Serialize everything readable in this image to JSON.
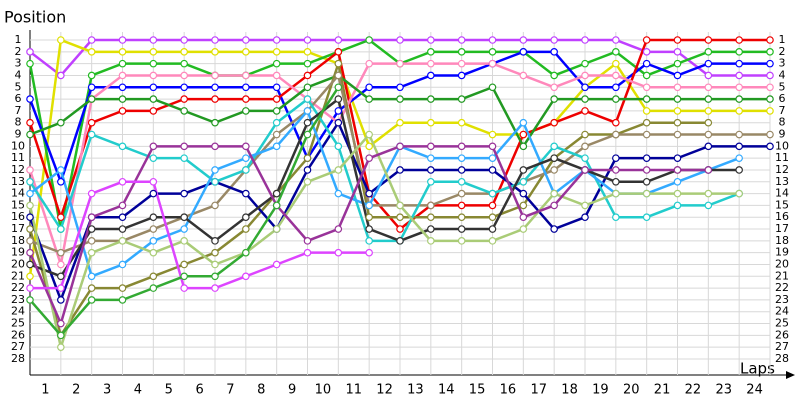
{
  "chart_data": {
    "type": "line",
    "y_label": "Position",
    "x_label": "Laps",
    "x": [
      0,
      1,
      2,
      3,
      4,
      5,
      6,
      7,
      8,
      9,
      10,
      11,
      12,
      13,
      14,
      15,
      16,
      17,
      18,
      19,
      20,
      21,
      22,
      23,
      24
    ],
    "xlim": [
      0,
      24
    ],
    "xticks": [
      1,
      2,
      3,
      4,
      5,
      6,
      7,
      8,
      9,
      10,
      11,
      12,
      13,
      14,
      15,
      16,
      17,
      18,
      19,
      20,
      21,
      22,
      23,
      24
    ],
    "ylim": [
      1,
      28
    ],
    "yticks": [
      1,
      2,
      3,
      4,
      5,
      6,
      7,
      8,
      9,
      10,
      11,
      12,
      13,
      14,
      15,
      16,
      17,
      18,
      19,
      20,
      21,
      22,
      23,
      24,
      25,
      26,
      27,
      28
    ],
    "reversed_y": true,
    "grid": true,
    "series": [
      {
        "color": "#c040ff",
        "values": [
          2,
          4,
          1,
          1,
          1,
          1,
          1,
          1,
          1,
          1,
          1,
          1,
          1,
          1,
          1,
          1,
          1,
          1,
          1,
          1,
          2,
          2,
          4,
          4,
          4
        ]
      },
      {
        "color": "#e0e000",
        "values": [
          21,
          1,
          2,
          2,
          2,
          2,
          2,
          2,
          2,
          2,
          3,
          10,
          8,
          8,
          8,
          9,
          9,
          8,
          5,
          3,
          7,
          7,
          7,
          7,
          7
        ]
      },
      {
        "color": "#22bb22",
        "values": [
          3,
          17,
          4,
          3,
          3,
          3,
          4,
          4,
          3,
          3,
          2,
          1,
          3,
          2,
          2,
          2,
          2,
          4,
          3,
          2,
          4,
          3,
          2,
          2,
          2
        ]
      },
      {
        "color": "#0000ff",
        "values": [
          6,
          13,
          5,
          5,
          5,
          5,
          5,
          5,
          5,
          11,
          7,
          5,
          5,
          4,
          4,
          3,
          2,
          2,
          5,
          5,
          3,
          4,
          3,
          3,
          3
        ]
      },
      {
        "color": "#ee0000",
        "values": [
          8,
          16,
          8,
          7,
          7,
          6,
          6,
          6,
          6,
          4,
          2,
          14,
          17,
          15,
          15,
          15,
          9,
          8,
          7,
          8,
          1,
          1,
          1,
          1,
          1
        ]
      },
      {
        "color": "#ff88bb",
        "values": [
          12,
          20,
          6,
          4,
          4,
          4,
          4,
          4,
          4,
          6,
          8,
          3,
          3,
          3,
          3,
          3,
          4,
          5,
          4,
          4,
          5,
          5,
          5,
          5,
          5
        ]
      },
      {
        "color": "#229922",
        "values": [
          9,
          8,
          6,
          6,
          6,
          7,
          8,
          7,
          7,
          5,
          4,
          6,
          6,
          6,
          6,
          5,
          10,
          6,
          6,
          6,
          6,
          6,
          6,
          6,
          6
        ]
      },
      {
        "color": "#888833",
        "values": [
          17,
          26,
          22,
          22,
          21,
          20,
          19,
          17,
          14,
          11,
          3,
          16,
          16,
          16,
          16,
          16,
          15,
          11,
          9,
          9,
          8,
          8,
          8,
          null,
          null
        ]
      },
      {
        "color": "#998866",
        "values": [
          18,
          19,
          18,
          18,
          17,
          16,
          15,
          12,
          9,
          7,
          4,
          15,
          15,
          15,
          14,
          14,
          13,
          12,
          10,
          9,
          9,
          9,
          9,
          9,
          9
        ]
      },
      {
        "color": "#000099",
        "values": [
          16,
          23,
          16,
          16,
          14,
          14,
          13,
          14,
          17,
          12,
          8,
          14,
          12,
          12,
          12,
          12,
          14,
          17,
          16,
          11,
          11,
          11,
          10,
          10,
          10
        ]
      },
      {
        "color": "#22cccc",
        "values": [
          13,
          17,
          9,
          10,
          11,
          11,
          13,
          12,
          8,
          6,
          10,
          18,
          18,
          13,
          13,
          14,
          13,
          10,
          11,
          16,
          16,
          15,
          15,
          14,
          null
        ]
      },
      {
        "color": "#33aaff",
        "values": [
          14,
          12,
          21,
          20,
          18,
          17,
          12,
          11,
          10,
          7,
          14,
          15,
          10,
          11,
          11,
          11,
          8,
          14,
          12,
          14,
          14,
          13,
          12,
          11,
          null
        ]
      },
      {
        "color": "#333333",
        "values": [
          20,
          21,
          17,
          17,
          16,
          16,
          18,
          16,
          14,
          8,
          6,
          17,
          18,
          17,
          17,
          17,
          12,
          11,
          12,
          13,
          13,
          12,
          12,
          12,
          null
        ]
      },
      {
        "color": "#aacc77",
        "values": [
          15,
          27,
          19,
          18,
          19,
          18,
          20,
          19,
          17,
          13,
          12,
          9,
          15,
          18,
          18,
          18,
          17,
          14,
          15,
          14,
          14,
          14,
          14,
          14,
          null
        ]
      },
      {
        "color": "#993399",
        "values": [
          19,
          25,
          16,
          15,
          10,
          10,
          10,
          10,
          15,
          18,
          17,
          11,
          10,
          10,
          10,
          10,
          16,
          15,
          12,
          12,
          12,
          12,
          12,
          null,
          null
        ]
      },
      {
        "color": "#dd44ff",
        "values": [
          22,
          22,
          14,
          13,
          13,
          22,
          22,
          21,
          20,
          19,
          19,
          19,
          null,
          null,
          null,
          null,
          null,
          null,
          null,
          null,
          null,
          null,
          null,
          null,
          null
        ]
      },
      {
        "color": "#33aa33",
        "values": [
          23,
          26,
          23,
          23,
          22,
          21,
          21,
          19,
          15,
          9,
          5,
          null,
          null,
          null,
          null,
          null,
          null,
          null,
          null,
          null,
          null,
          null,
          null,
          null,
          null
        ]
      }
    ]
  }
}
